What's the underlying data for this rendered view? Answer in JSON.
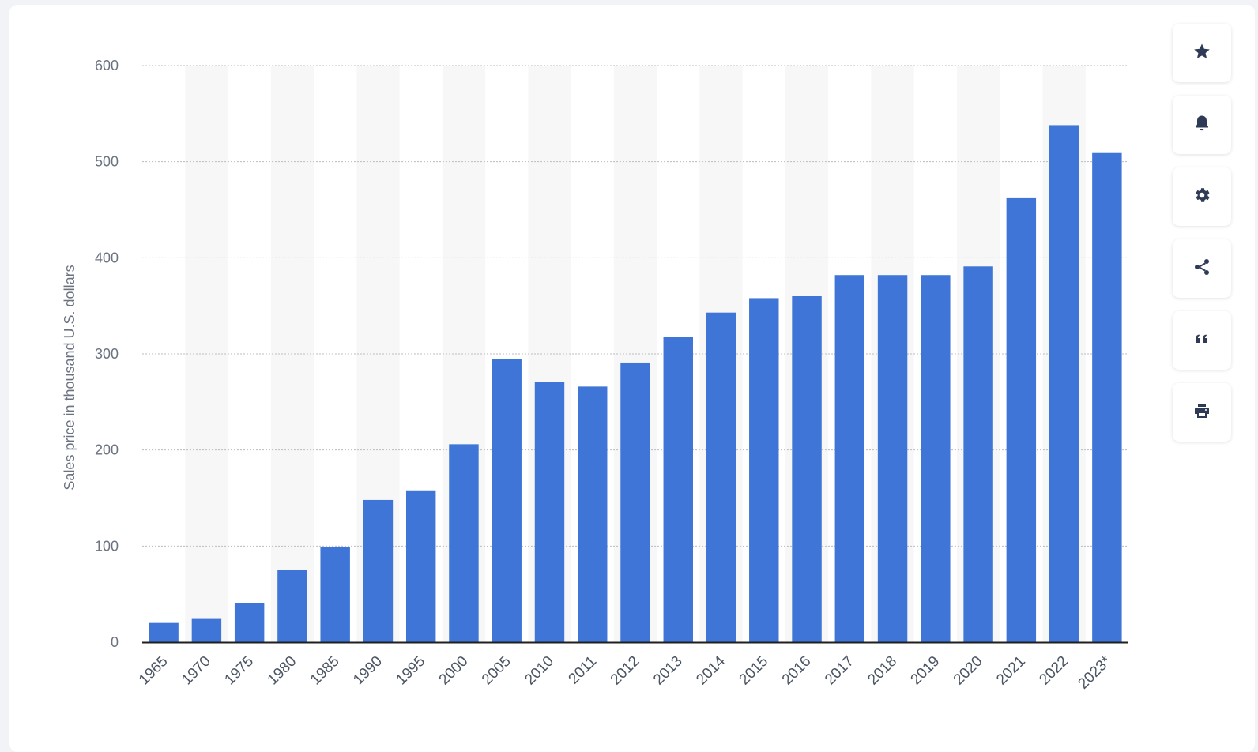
{
  "chart_data": {
    "type": "bar",
    "title": "",
    "xlabel": "",
    "ylabel": "Sales price in thousand U.S. dollars",
    "ylim": [
      0,
      600
    ],
    "yticks": [
      "0",
      "100",
      "200",
      "300",
      "400",
      "500",
      "600"
    ],
    "grid": true,
    "legend": "none",
    "categories": [
      "1965",
      "1970",
      "1975",
      "1980",
      "1985",
      "1990",
      "1995",
      "2000",
      "2005",
      "2010",
      "2011",
      "2012",
      "2013",
      "2014",
      "2015",
      "2016",
      "2017",
      "2018",
      "2019",
      "2020",
      "2021",
      "2022",
      "2023*"
    ],
    "values": [
      20,
      25,
      41,
      75,
      99,
      148,
      158,
      206,
      295,
      271,
      266,
      291,
      318,
      343,
      358,
      360,
      382,
      382,
      382,
      391,
      462,
      538,
      509
    ],
    "bar_color": "#3f75d6"
  },
  "toolbar": {
    "buttons": [
      {
        "name": "favorite",
        "icon": "star-icon"
      },
      {
        "name": "notification",
        "icon": "bell-icon"
      },
      {
        "name": "settings",
        "icon": "gear-icon"
      },
      {
        "name": "share",
        "icon": "share-icon"
      },
      {
        "name": "cite",
        "icon": "quote-icon"
      },
      {
        "name": "print",
        "icon": "printer-icon"
      }
    ]
  }
}
